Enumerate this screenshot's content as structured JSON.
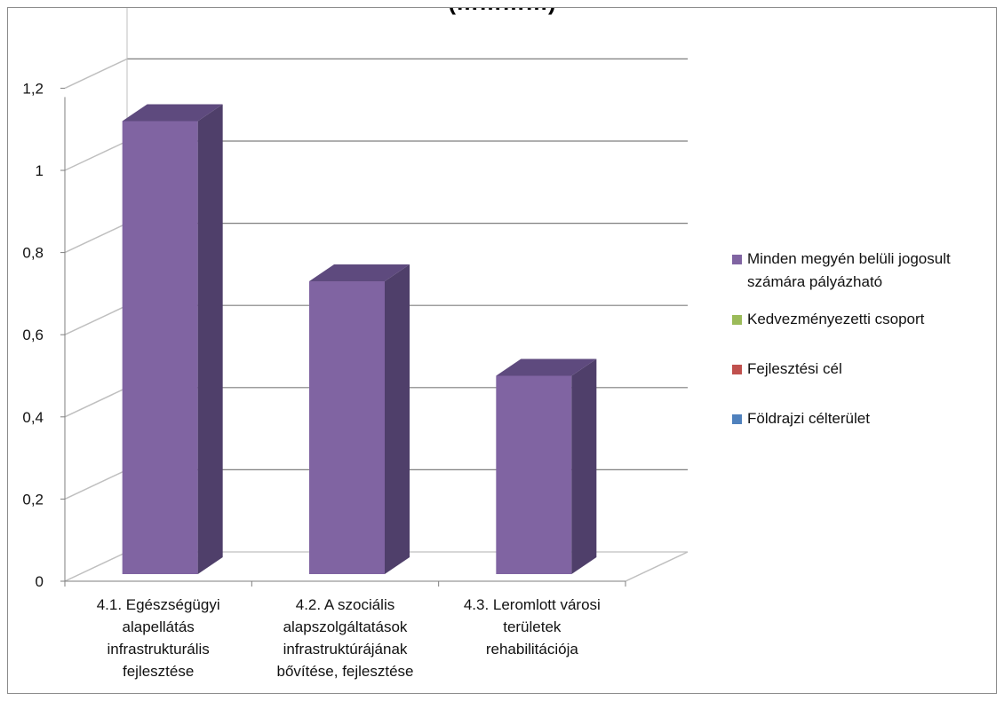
{
  "chart_data": {
    "type": "bar",
    "title": "(…………)",
    "categories": [
      "4.1. Egészségügyi alapellátás infrastrukturális fejlesztése",
      "4.2. A szociális alapszolgáltatások infrastruktúrájának bővítése, fejlesztése",
      "4.3. Leromlott városi területek rehabilitációja"
    ],
    "category_lines": [
      [
        "4.1. Egészségügyi",
        "alapellátás",
        "infrastrukturális",
        "fejlesztése"
      ],
      [
        "4.2. A szociális",
        "alapszolgáltatások",
        "infrastruktúrájának",
        "bővítése, fejlesztése"
      ],
      [
        "4.3. Leromlott városi",
        "területek",
        "rehabilitációja"
      ]
    ],
    "series": [
      {
        "name": "Minden megyén belüli jogosult számára pályázható",
        "values": [
          1.12,
          0.73,
          0.5
        ],
        "color": "#8064a2"
      },
      {
        "name": "Kedvezményezetti csoport",
        "values": [
          0,
          0,
          0
        ],
        "color": "#9bbb59"
      },
      {
        "name": "Fejlesztési cél",
        "values": [
          0,
          0,
          0
        ],
        "color": "#c0504d"
      },
      {
        "name": "Földrajzi célterület",
        "values": [
          0,
          0,
          0
        ],
        "color": "#4f81bd"
      }
    ],
    "legend_lines": [
      [
        "Minden megyén belüli jogosult",
        "számára pályázható"
      ],
      [
        "Kedvezményezetti csoport"
      ],
      [
        "Fejlesztési cél"
      ],
      [
        "Földrajzi célterület"
      ]
    ],
    "yticks": [
      "0",
      "0,2",
      "0,4",
      "0,6",
      "0,8",
      "1",
      "1,2"
    ],
    "ylim": [
      0,
      1.2
    ],
    "grid": true,
    "legend_position": "right"
  }
}
